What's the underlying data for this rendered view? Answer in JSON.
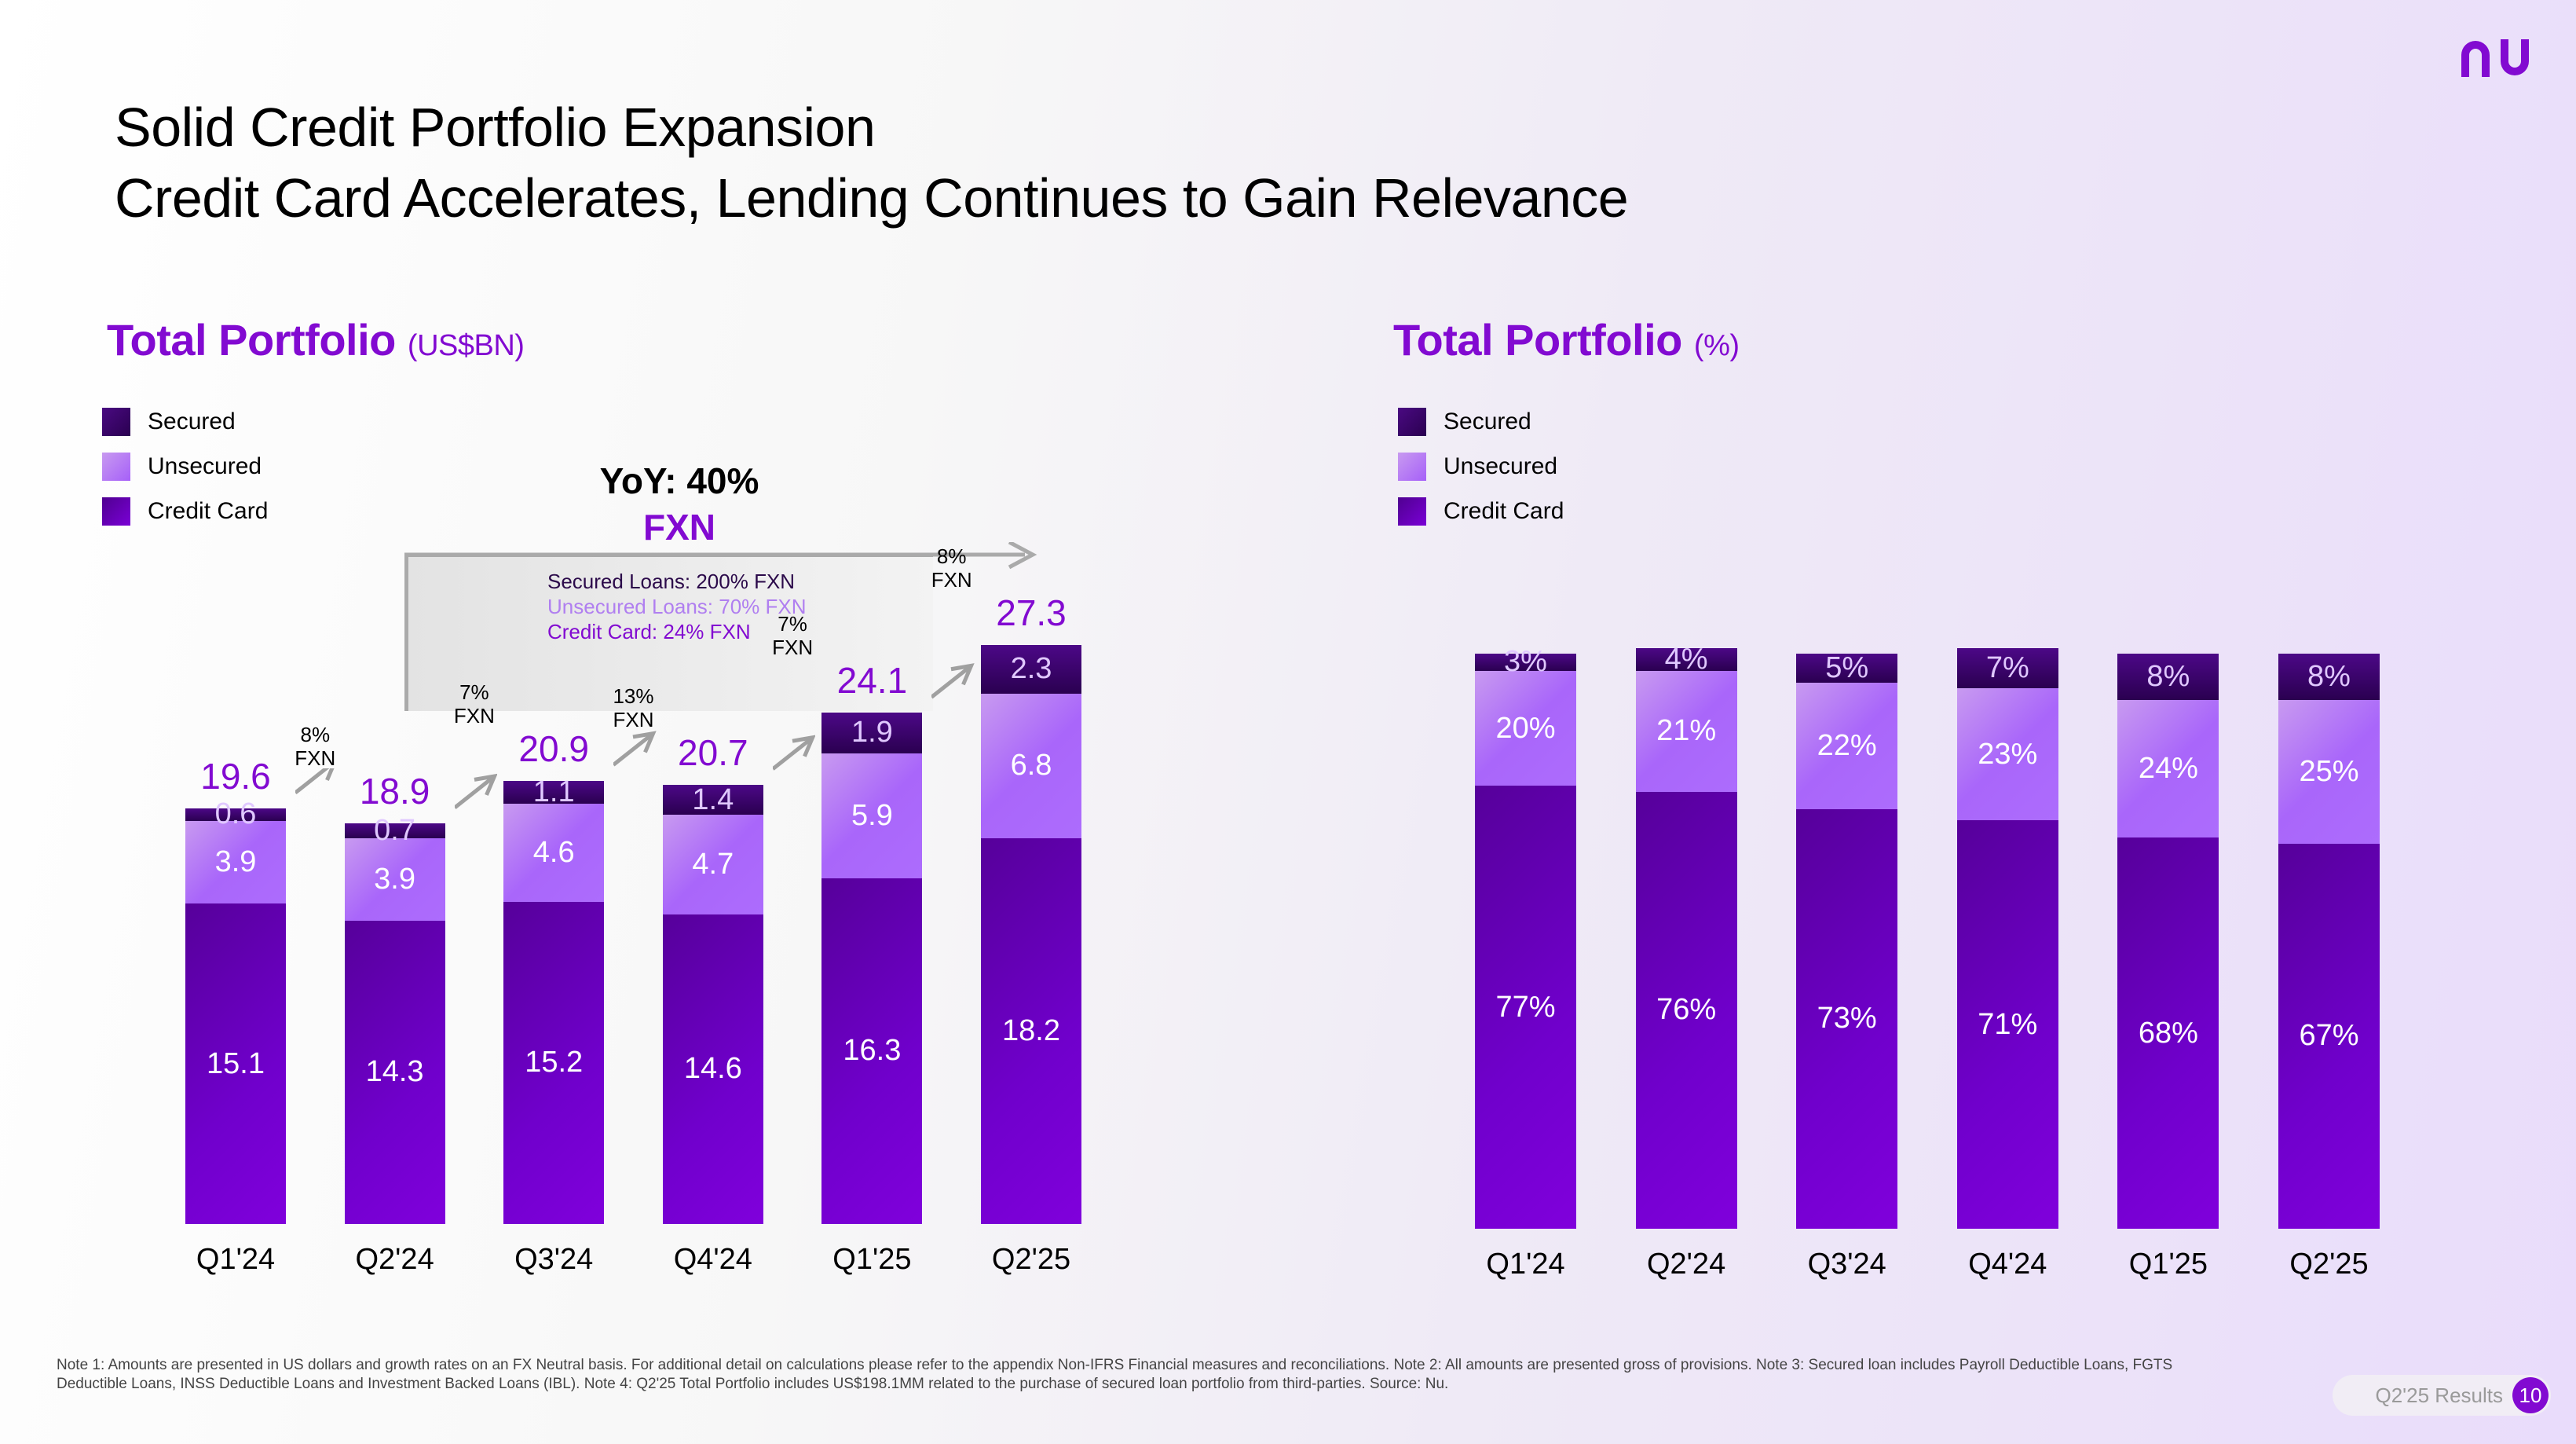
{
  "header": {
    "title_line1": "Solid Credit Portfolio Expansion",
    "title_line2": "Credit Card Accelerates, Lending Continues to Gain Relevance",
    "logo": "nu-logo"
  },
  "colors": {
    "brand": "#820ad1",
    "secured": "#3a0568",
    "unsecured": "#a966fa",
    "credit_card": "#6a00c0"
  },
  "left_panel": {
    "title": "Total Portfolio",
    "unit": "(US$BN)",
    "legend": [
      "Secured",
      "Unsecured",
      "Credit Card"
    ],
    "yoy": {
      "label": "YoY: 40%",
      "sub": "FXN",
      "details": [
        "Secured Loans: 200% FXN",
        "Unsecured Loans: 70% FXN",
        "Credit Card: 24% FXN"
      ]
    },
    "growth_labels": [
      {
        "pct": "8%",
        "sub": "FXN"
      },
      {
        "pct": "7%",
        "sub": "FXN"
      },
      {
        "pct": "13%",
        "sub": "FXN"
      },
      {
        "pct": "7%",
        "sub": "FXN"
      },
      {
        "pct": "8%",
        "sub": "FXN"
      }
    ]
  },
  "right_panel": {
    "title": "Total Portfolio",
    "unit": "(%)",
    "legend": [
      "Secured",
      "Unsecured",
      "Credit Card"
    ]
  },
  "chart_data": [
    {
      "type": "bar",
      "stacked": true,
      "title": "Total Portfolio (US$BN)",
      "categories": [
        "Q1'24",
        "Q2'24",
        "Q3'24",
        "Q4'24",
        "Q1'25",
        "Q2'25"
      ],
      "series": [
        {
          "name": "Credit Card",
          "values": [
            15.1,
            14.3,
            15.2,
            14.6,
            16.3,
            18.2
          ]
        },
        {
          "name": "Unsecured",
          "values": [
            3.9,
            3.9,
            4.6,
            4.7,
            5.9,
            6.8
          ]
        },
        {
          "name": "Secured",
          "values": [
            0.6,
            0.7,
            1.1,
            1.4,
            1.9,
            2.3
          ]
        }
      ],
      "totals": [
        "19.6",
        "18.9",
        "20.9",
        "20.7",
        "24.1",
        "27.3"
      ],
      "qoq_growth": [
        "8% FXN",
        "7% FXN",
        "13% FXN",
        "7% FXN",
        "8% FXN"
      ],
      "xlabel": "",
      "ylabel": "",
      "ylim": [
        0,
        28
      ],
      "grid": false,
      "legend": "top-left"
    },
    {
      "type": "bar",
      "stacked": true,
      "title": "Total Portfolio (%)",
      "categories": [
        "Q1'24",
        "Q2'24",
        "Q3'24",
        "Q4'24",
        "Q1'25",
        "Q2'25"
      ],
      "series": [
        {
          "name": "Credit Card",
          "values": [
            77,
            76,
            73,
            71,
            68,
            67
          ]
        },
        {
          "name": "Unsecured",
          "values": [
            20,
            21,
            22,
            23,
            24,
            25
          ]
        },
        {
          "name": "Secured",
          "values": [
            3,
            4,
            5,
            7,
            8,
            8
          ]
        }
      ],
      "xlabel": "",
      "ylabel": "",
      "ylim": [
        0,
        100
      ],
      "grid": false,
      "legend": "top-left"
    }
  ],
  "footer": {
    "notes": "Note 1: Amounts are presented in US dollars and growth rates on an FX Neutral basis. For additional detail on calculations please refer to the appendix Non-IFRS Financial measures and reconciliations. Note 2: All amounts are presented gross of provisions. Note 3: Secured loan includes Payroll Deductible Loans, FGTS Deductible Loans, INSS Deductible Loans and Investment Backed Loans (IBL). Note 4: Q2'25 Total Portfolio includes US$198.1MM related to the purchase of secured loan portfolio from third-parties. Source: Nu.",
    "results_label": "Q2'25 Results",
    "page_number": "10"
  }
}
